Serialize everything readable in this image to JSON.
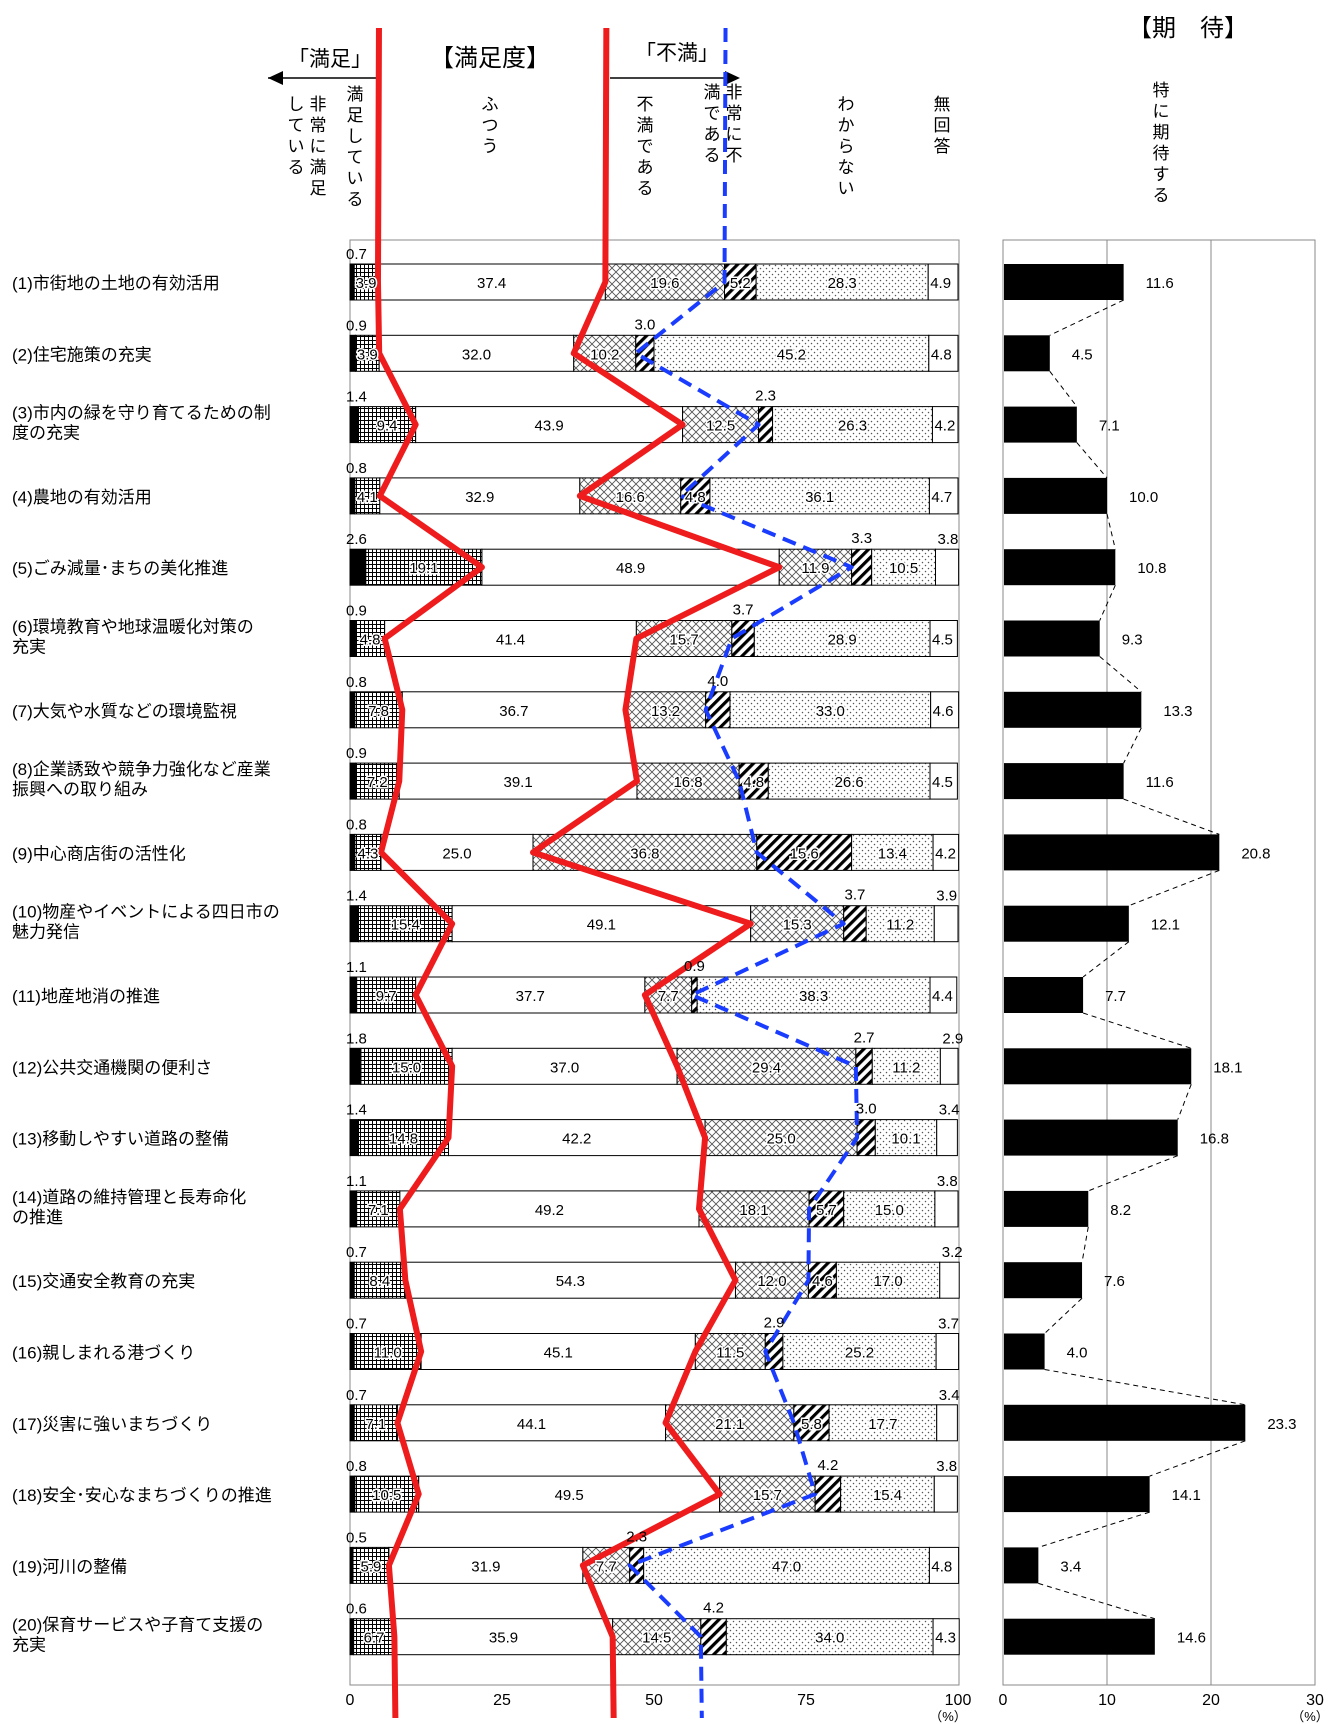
{
  "chart_data": [
    {
      "type": "bar",
      "stacked": true,
      "orientation": "horizontal",
      "title": "【満足度】",
      "xlim": [
        0,
        100
      ],
      "xticks": [
        "0",
        "25",
        "50",
        "75",
        "100"
      ],
      "unit_label": "（%）",
      "segment_labels": [
        "非常に満足している",
        "満足している",
        "ふつう",
        "不満である",
        "非常に不満である",
        "わからない",
        "無回答"
      ],
      "satisfied_label": "「満足」",
      "dissatisfied_label": "「不満」",
      "categories": [
        "(1)市街地の土地の有効活用",
        "(2)住宅施策の充実",
        "(3)市内の緑を守り育てるための制度の充実",
        "(4)農地の有効活用",
        "(5)ごみ減量･まちの美化推進",
        "(6)環境教育や地球温暖化対策の充実",
        "(7)大気や水質などの環境監視",
        "(8)企業誘致や競争力強化など産業振興への取り組み",
        "(9)中心商店街の活性化",
        "(10)物産やイベントによる四日市の魅力発信",
        "(11)地産地消の推進",
        "(12)公共交通機関の便利さ",
        "(13)移動しやすい道路の整備",
        "(14)道路の維持管理と長寿命化の推進",
        "(15)交通安全教育の充実",
        "(16)親しまれる港づくり",
        "(17)災害に強いまちづくり",
        "(18)安全･安心なまちづくりの推進",
        "(19)河川の整備",
        "(20)保育サービスや子育て支援の充実"
      ],
      "category_lines": [
        [
          "(1)市街地の土地の有効活用"
        ],
        [
          "(2)住宅施策の充実"
        ],
        [
          "(3)市内の緑を守り育てるための制",
          "度の充実"
        ],
        [
          "(4)農地の有効活用"
        ],
        [
          "(5)ごみ減量･まちの美化推進"
        ],
        [
          "(6)環境教育や地球温暖化対策の",
          "充実"
        ],
        [
          "(7)大気や水質などの環境監視"
        ],
        [
          "(8)企業誘致や競争力強化など産業",
          "振興への取り組み"
        ],
        [
          "(9)中心商店街の活性化"
        ],
        [
          "(10)物産やイベントによる四日市の",
          "魅力発信"
        ],
        [
          "(11)地産地消の推進"
        ],
        [
          "(12)公共交通機関の便利さ"
        ],
        [
          "(13)移動しやすい道路の整備"
        ],
        [
          "(14)道路の維持管理と長寿命化",
          "の推進"
        ],
        [
          "(15)交通安全教育の充実"
        ],
        [
          "(16)親しまれる港づくり"
        ],
        [
          "(17)災害に強いまちづくり"
        ],
        [
          "(18)安全･安心なまちづくりの推進"
        ],
        [
          "(19)河川の整備"
        ],
        [
          "(20)保育サービスや子育て支援の",
          "充実"
        ]
      ],
      "series": [
        {
          "name": "非常に満足している",
          "values": [
            0.7,
            0.9,
            1.4,
            0.8,
            2.6,
            0.9,
            0.8,
            0.9,
            0.8,
            1.4,
            1.1,
            1.8,
            1.4,
            1.1,
            0.7,
            0.7,
            0.7,
            0.8,
            0.5,
            0.6
          ]
        },
        {
          "name": "満足している",
          "values": [
            3.9,
            3.9,
            9.4,
            4.1,
            19.1,
            4.8,
            7.8,
            7.2,
            4.3,
            15.4,
            9.7,
            15.0,
            14.8,
            7.1,
            8.4,
            11.0,
            7.1,
            10.5,
            5.9,
            6.7
          ]
        },
        {
          "name": "ふつう",
          "values": [
            37.4,
            32.0,
            43.9,
            32.9,
            48.9,
            41.4,
            36.7,
            39.1,
            25.0,
            49.1,
            37.7,
            37.0,
            42.2,
            49.2,
            54.3,
            45.1,
            44.1,
            49.5,
            31.9,
            35.9
          ]
        },
        {
          "name": "不満である",
          "values": [
            19.6,
            10.2,
            12.5,
            16.6,
            11.9,
            15.7,
            13.2,
            16.8,
            36.8,
            15.3,
            7.7,
            29.4,
            25.0,
            18.1,
            12.0,
            11.5,
            21.1,
            15.7,
            7.7,
            14.5
          ]
        },
        {
          "name": "非常に不満である",
          "values": [
            5.2,
            3.0,
            2.3,
            4.8,
            3.3,
            3.7,
            4.0,
            4.8,
            15.6,
            3.7,
            0.9,
            2.7,
            3.0,
            5.7,
            4.6,
            2.9,
            5.8,
            4.2,
            2.3,
            4.2
          ]
        },
        {
          "name": "わからない",
          "values": [
            28.3,
            45.2,
            26.3,
            36.1,
            10.5,
            28.9,
            33.0,
            26.6,
            13.4,
            11.2,
            38.3,
            11.2,
            10.1,
            15.0,
            17.0,
            25.2,
            17.7,
            15.4,
            47.0,
            34.0
          ]
        },
        {
          "name": "無回答",
          "values": [
            4.9,
            4.8,
            4.2,
            4.7,
            3.8,
            4.5,
            4.6,
            4.5,
            4.2,
            3.9,
            4.4,
            2.9,
            3.4,
            3.8,
            3.2,
            3.7,
            3.4,
            3.8,
            4.8,
            4.3
          ]
        }
      ]
    },
    {
      "type": "bar",
      "orientation": "horizontal",
      "title": "【期　待】",
      "xlim": [
        0,
        30
      ],
      "xticks": [
        "0",
        "10",
        "20",
        "30"
      ],
      "unit_label": "（%）",
      "series": [
        {
          "name": "特に期待する",
          "values": [
            11.6,
            4.5,
            7.1,
            10.0,
            10.8,
            9.3,
            13.3,
            11.6,
            20.8,
            12.1,
            7.7,
            18.1,
            16.8,
            8.2,
            7.6,
            4.0,
            23.3,
            14.1,
            3.4,
            14.6
          ]
        }
      ]
    }
  ],
  "colors": {
    "satisfaction_line": "#ee1c1c",
    "dissatisfaction_line": "#1a3cff",
    "bar_fill": "#000000",
    "grid": "#888888"
  }
}
